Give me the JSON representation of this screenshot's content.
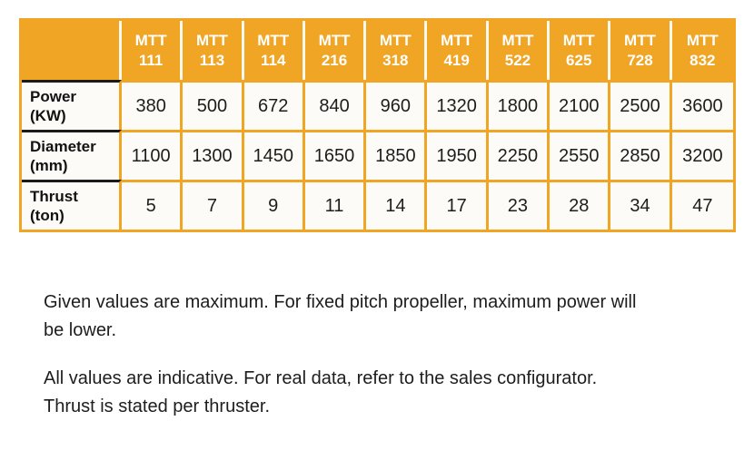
{
  "colors": {
    "accent_orange": "#F0A524",
    "header_text": "#FFFFFF",
    "body_text": "#1C1C1C",
    "label_separator_black": "#1A1A1A"
  },
  "table": {
    "columns": [
      {
        "series": "MTT",
        "model": "111"
      },
      {
        "series": "MTT",
        "model": "113"
      },
      {
        "series": "MTT",
        "model": "114"
      },
      {
        "series": "MTT",
        "model": "216"
      },
      {
        "series": "MTT",
        "model": "318"
      },
      {
        "series": "MTT",
        "model": "419"
      },
      {
        "series": "MTT",
        "model": "522"
      },
      {
        "series": "MTT",
        "model": "625"
      },
      {
        "series": "MTT",
        "model": "728"
      },
      {
        "series": "MTT",
        "model": "832"
      }
    ],
    "rows": [
      {
        "label": "Power",
        "unit": "(KW)",
        "values": [
          "380",
          "500",
          "672",
          "840",
          "960",
          "1320",
          "1800",
          "2100",
          "2500",
          "3600"
        ]
      },
      {
        "label": "Diameter",
        "unit": "(mm)",
        "values": [
          "1100",
          "1300",
          "1450",
          "1650",
          "1850",
          "1950",
          "2250",
          "2550",
          "2850",
          "3200"
        ]
      },
      {
        "label": "Thrust",
        "unit": "(ton)",
        "values": [
          "5",
          "7",
          "9",
          "11",
          "14",
          "17",
          "23",
          "28",
          "34",
          "47"
        ]
      }
    ]
  },
  "notes": {
    "note1": {
      "lines": [
        "Given values are maximum. For fixed pitch propeller, maximum power will",
        "be lower."
      ]
    },
    "note2": {
      "lines": [
        "All values are indicative. For real data, refer to the sales configurator.",
        "Thrust is stated per thruster."
      ]
    }
  }
}
